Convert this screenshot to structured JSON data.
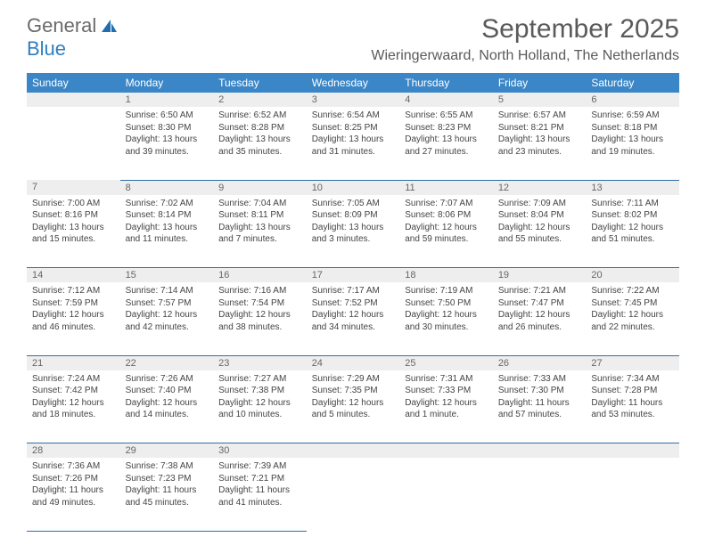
{
  "logo": {
    "word1": "General",
    "word2": "Blue"
  },
  "title": "September 2025",
  "location": "Wieringerwaard, North Holland, The Netherlands",
  "colors": {
    "header_bg": "#3b86c6",
    "header_text": "#ffffff",
    "daynum_bg": "#eeeeee",
    "row_border": "#2f6ea8",
    "title_color": "#5a5a5a",
    "logo_gray": "#6a6a6a",
    "logo_blue": "#2f7fc1"
  },
  "day_headers": [
    "Sunday",
    "Monday",
    "Tuesday",
    "Wednesday",
    "Thursday",
    "Friday",
    "Saturday"
  ],
  "weeks": [
    [
      null,
      {
        "n": "1",
        "sr": "Sunrise: 6:50 AM",
        "ss": "Sunset: 8:30 PM",
        "dl": "Daylight: 13 hours and 39 minutes."
      },
      {
        "n": "2",
        "sr": "Sunrise: 6:52 AM",
        "ss": "Sunset: 8:28 PM",
        "dl": "Daylight: 13 hours and 35 minutes."
      },
      {
        "n": "3",
        "sr": "Sunrise: 6:54 AM",
        "ss": "Sunset: 8:25 PM",
        "dl": "Daylight: 13 hours and 31 minutes."
      },
      {
        "n": "4",
        "sr": "Sunrise: 6:55 AM",
        "ss": "Sunset: 8:23 PM",
        "dl": "Daylight: 13 hours and 27 minutes."
      },
      {
        "n": "5",
        "sr": "Sunrise: 6:57 AM",
        "ss": "Sunset: 8:21 PM",
        "dl": "Daylight: 13 hours and 23 minutes."
      },
      {
        "n": "6",
        "sr": "Sunrise: 6:59 AM",
        "ss": "Sunset: 8:18 PM",
        "dl": "Daylight: 13 hours and 19 minutes."
      }
    ],
    [
      {
        "n": "7",
        "sr": "Sunrise: 7:00 AM",
        "ss": "Sunset: 8:16 PM",
        "dl": "Daylight: 13 hours and 15 minutes."
      },
      {
        "n": "8",
        "sr": "Sunrise: 7:02 AM",
        "ss": "Sunset: 8:14 PM",
        "dl": "Daylight: 13 hours and 11 minutes."
      },
      {
        "n": "9",
        "sr": "Sunrise: 7:04 AM",
        "ss": "Sunset: 8:11 PM",
        "dl": "Daylight: 13 hours and 7 minutes."
      },
      {
        "n": "10",
        "sr": "Sunrise: 7:05 AM",
        "ss": "Sunset: 8:09 PM",
        "dl": "Daylight: 13 hours and 3 minutes."
      },
      {
        "n": "11",
        "sr": "Sunrise: 7:07 AM",
        "ss": "Sunset: 8:06 PM",
        "dl": "Daylight: 12 hours and 59 minutes."
      },
      {
        "n": "12",
        "sr": "Sunrise: 7:09 AM",
        "ss": "Sunset: 8:04 PM",
        "dl": "Daylight: 12 hours and 55 minutes."
      },
      {
        "n": "13",
        "sr": "Sunrise: 7:11 AM",
        "ss": "Sunset: 8:02 PM",
        "dl": "Daylight: 12 hours and 51 minutes."
      }
    ],
    [
      {
        "n": "14",
        "sr": "Sunrise: 7:12 AM",
        "ss": "Sunset: 7:59 PM",
        "dl": "Daylight: 12 hours and 46 minutes."
      },
      {
        "n": "15",
        "sr": "Sunrise: 7:14 AM",
        "ss": "Sunset: 7:57 PM",
        "dl": "Daylight: 12 hours and 42 minutes."
      },
      {
        "n": "16",
        "sr": "Sunrise: 7:16 AM",
        "ss": "Sunset: 7:54 PM",
        "dl": "Daylight: 12 hours and 38 minutes."
      },
      {
        "n": "17",
        "sr": "Sunrise: 7:17 AM",
        "ss": "Sunset: 7:52 PM",
        "dl": "Daylight: 12 hours and 34 minutes."
      },
      {
        "n": "18",
        "sr": "Sunrise: 7:19 AM",
        "ss": "Sunset: 7:50 PM",
        "dl": "Daylight: 12 hours and 30 minutes."
      },
      {
        "n": "19",
        "sr": "Sunrise: 7:21 AM",
        "ss": "Sunset: 7:47 PM",
        "dl": "Daylight: 12 hours and 26 minutes."
      },
      {
        "n": "20",
        "sr": "Sunrise: 7:22 AM",
        "ss": "Sunset: 7:45 PM",
        "dl": "Daylight: 12 hours and 22 minutes."
      }
    ],
    [
      {
        "n": "21",
        "sr": "Sunrise: 7:24 AM",
        "ss": "Sunset: 7:42 PM",
        "dl": "Daylight: 12 hours and 18 minutes."
      },
      {
        "n": "22",
        "sr": "Sunrise: 7:26 AM",
        "ss": "Sunset: 7:40 PM",
        "dl": "Daylight: 12 hours and 14 minutes."
      },
      {
        "n": "23",
        "sr": "Sunrise: 7:27 AM",
        "ss": "Sunset: 7:38 PM",
        "dl": "Daylight: 12 hours and 10 minutes."
      },
      {
        "n": "24",
        "sr": "Sunrise: 7:29 AM",
        "ss": "Sunset: 7:35 PM",
        "dl": "Daylight: 12 hours and 5 minutes."
      },
      {
        "n": "25",
        "sr": "Sunrise: 7:31 AM",
        "ss": "Sunset: 7:33 PM",
        "dl": "Daylight: 12 hours and 1 minute."
      },
      {
        "n": "26",
        "sr": "Sunrise: 7:33 AM",
        "ss": "Sunset: 7:30 PM",
        "dl": "Daylight: 11 hours and 57 minutes."
      },
      {
        "n": "27",
        "sr": "Sunrise: 7:34 AM",
        "ss": "Sunset: 7:28 PM",
        "dl": "Daylight: 11 hours and 53 minutes."
      }
    ],
    [
      {
        "n": "28",
        "sr": "Sunrise: 7:36 AM",
        "ss": "Sunset: 7:26 PM",
        "dl": "Daylight: 11 hours and 49 minutes."
      },
      {
        "n": "29",
        "sr": "Sunrise: 7:38 AM",
        "ss": "Sunset: 7:23 PM",
        "dl": "Daylight: 11 hours and 45 minutes."
      },
      {
        "n": "30",
        "sr": "Sunrise: 7:39 AM",
        "ss": "Sunset: 7:21 PM",
        "dl": "Daylight: 11 hours and 41 minutes."
      },
      null,
      null,
      null,
      null
    ]
  ]
}
